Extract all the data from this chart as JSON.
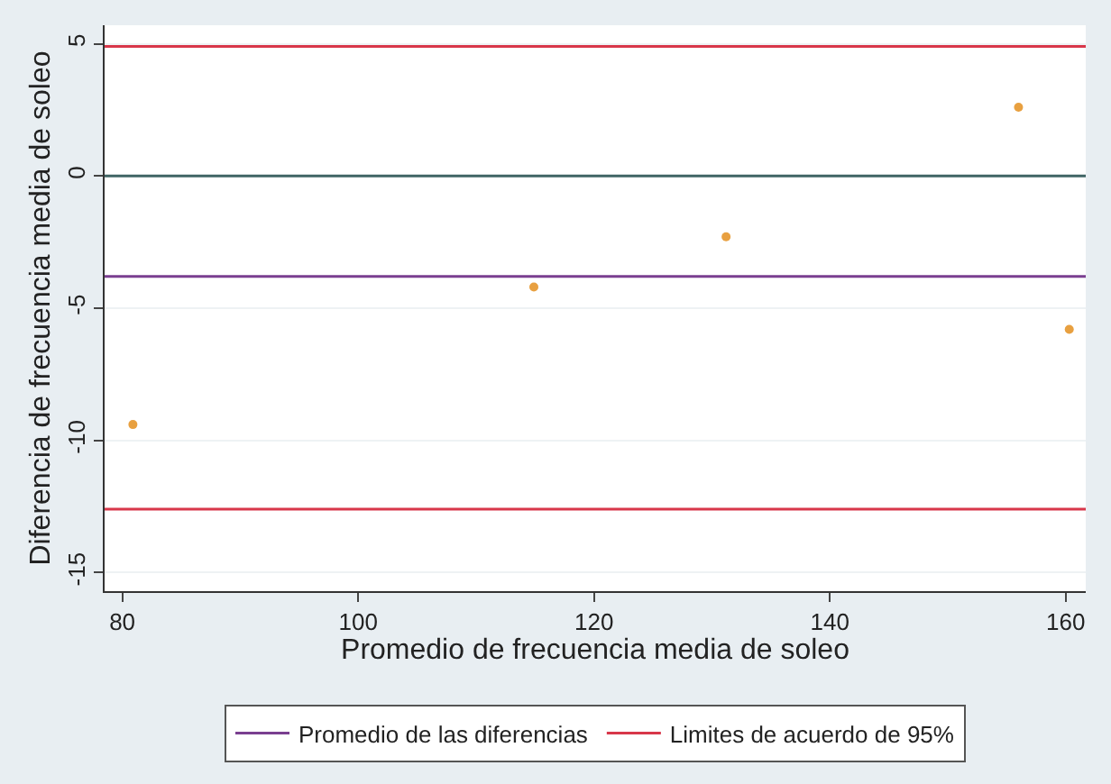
{
  "chart_data": {
    "type": "scatter",
    "xlabel": "Promedio de frecuencia media de soleo",
    "ylabel": "Diferencia de frecuencia media de soleo",
    "x": [
      80.9,
      114.9,
      131.2,
      156,
      160.3
    ],
    "series": [
      {
        "color": "#e8a040",
        "values": [
          -9.4,
          -4.2,
          -2.3,
          2.6,
          -5.8
        ]
      }
    ],
    "marker": "circle",
    "xlim": [
      78.5,
      161.7
    ],
    "xticks": [
      80,
      100,
      120,
      140,
      160
    ],
    "ylim": [
      -15.7,
      5.7
    ],
    "yticks": [
      -15,
      -10,
      -5,
      0,
      5
    ],
    "ref_lines": [
      {
        "axis": "y",
        "value": 4.9,
        "label": "Limites de acuerdo de 95%",
        "color": "#d8374a"
      },
      {
        "axis": "y",
        "value": 0,
        "color": "#3f6464"
      },
      {
        "axis": "y",
        "value": -3.8,
        "label": "Promedio de las diferencias",
        "color": "#7a3f90"
      },
      {
        "axis": "y",
        "value": -12.6,
        "color": "#d8374a"
      }
    ],
    "grid": "y",
    "legend": "bottom"
  }
}
